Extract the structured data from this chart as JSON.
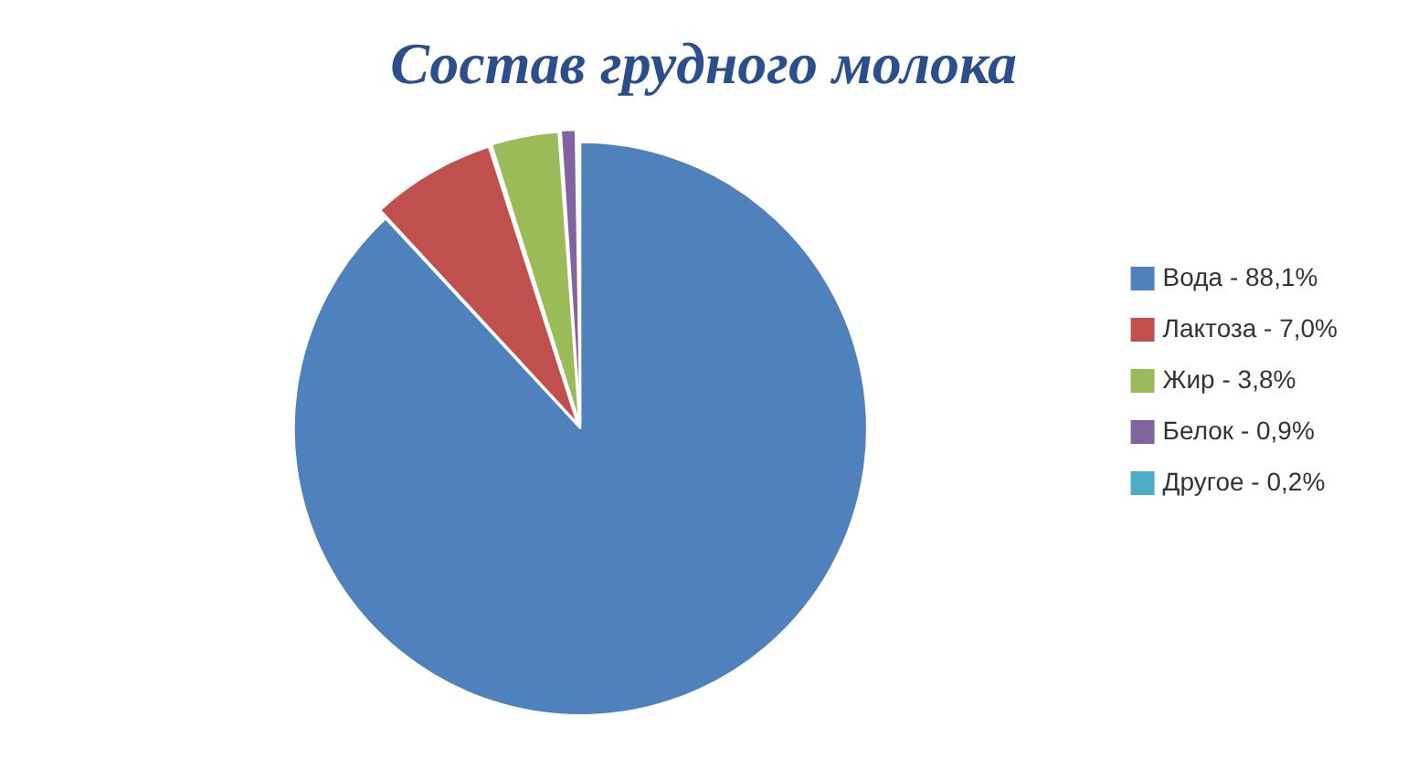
{
  "chart_data": {
    "type": "pie",
    "title": "Состав грудного молока",
    "categories": [
      "Вода - 88,1%",
      "Лактоза - 7,0%",
      "Жир - 3,8%",
      "Белок - 0,9%",
      "Другое - 0,2%"
    ],
    "values": [
      88.1,
      7.0,
      3.8,
      0.9,
      0.2
    ],
    "colors": [
      "#4f81bd",
      "#c0504d",
      "#9bbb59",
      "#8064a2",
      "#4bacc6"
    ],
    "legend": "right"
  }
}
